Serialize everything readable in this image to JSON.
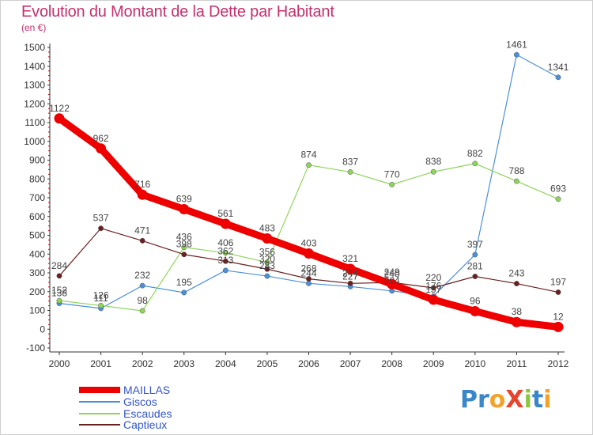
{
  "title": "Evolution du Montant de la Dette par Habitant",
  "unit_label": "(en €)",
  "logo": {
    "text": "ProXiti",
    "letters": [
      {
        "ch": "P",
        "color": "#3a86c8"
      },
      {
        "ch": "r",
        "color": "#3a86c8"
      },
      {
        "ch": "o",
        "color": "#f2a22b"
      },
      {
        "ch": "X",
        "color": "#e8432d"
      },
      {
        "ch": "i",
        "color": "#8cc63f"
      },
      {
        "ch": "t",
        "color": "#3a86c8"
      },
      {
        "ch": "i",
        "color": "#f2a22b"
      }
    ]
  },
  "chart_data": {
    "type": "line",
    "title": "Evolution du Montant de la Dette par Habitant",
    "ylabel": "(en €)",
    "x": [
      2000,
      2001,
      2002,
      2003,
      2004,
      2005,
      2006,
      2007,
      2008,
      2009,
      2010,
      2011,
      2012
    ],
    "ylim": [
      -100,
      1500
    ],
    "yticks": [
      -100,
      0,
      100,
      200,
      300,
      400,
      500,
      600,
      700,
      800,
      900,
      1000,
      1100,
      1200,
      1300,
      1400,
      1500
    ],
    "grid": false,
    "legend_placement": "bottom-left",
    "series": [
      {
        "name": "MAILLAS",
        "color": "#ee0000",
        "values": [
          1122,
          962,
          716,
          639,
          561,
          483,
          403,
          321,
          240,
          157,
          96,
          38,
          12
        ],
        "labels": [
          "1122",
          "962",
          "716",
          "639",
          "561",
          "483",
          "403",
          "321",
          "240",
          "157",
          "96",
          "38",
          "12"
        ]
      },
      {
        "name": "Giscos",
        "color": "#4a90d9",
        "values": [
          138,
          111,
          232,
          195,
          313,
          283,
          244,
          227,
          204,
          176,
          397,
          1461,
          1341
        ],
        "labels": [
          "138",
          "111",
          "232",
          "195",
          "313",
          "283",
          "244",
          "227",
          "204",
          "176",
          "397",
          "1461",
          "1341"
        ]
      },
      {
        "name": "Escaudes",
        "color": "#8fd45a",
        "values": [
          152,
          126,
          98,
          436,
          406,
          356,
          874,
          837,
          770,
          838,
          882,
          788,
          693
        ],
        "labels": [
          "152",
          "126",
          "98",
          "436",
          "406",
          "356",
          "874",
          "837",
          "770",
          "838",
          "882",
          "788",
          "693"
        ]
      },
      {
        "name": "Captieux",
        "color": "#6b1f1f",
        "values": [
          284,
          537,
          471,
          398,
          362,
          320,
          268,
          244,
          249,
          220,
          281,
          243,
          197
        ],
        "labels": [
          "284",
          "537",
          "471",
          "398",
          "362",
          "320",
          "268",
          "244",
          "249",
          "220",
          "281",
          "243",
          "197"
        ]
      }
    ]
  }
}
